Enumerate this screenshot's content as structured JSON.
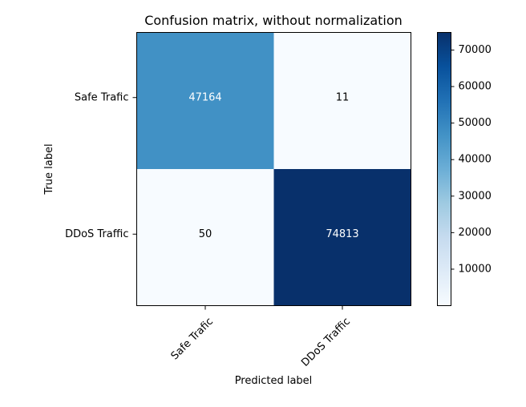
{
  "chart_data": {
    "type": "heatmap",
    "title": "Confusion matrix, without normalization",
    "xlabel": "Predicted label",
    "ylabel": "True label",
    "x_categories": [
      "Safe Trafic",
      "DDoS Traffic"
    ],
    "y_categories": [
      "Safe Trafic",
      "DDoS Traffic"
    ],
    "matrix": [
      [
        47164,
        11
      ],
      [
        50,
        74813
      ]
    ],
    "colormap": "Blues",
    "colorbar": {
      "min": 11,
      "max": 74813,
      "ticks": [
        10000,
        20000,
        30000,
        40000,
        50000,
        60000,
        70000
      ]
    },
    "grid": false
  }
}
